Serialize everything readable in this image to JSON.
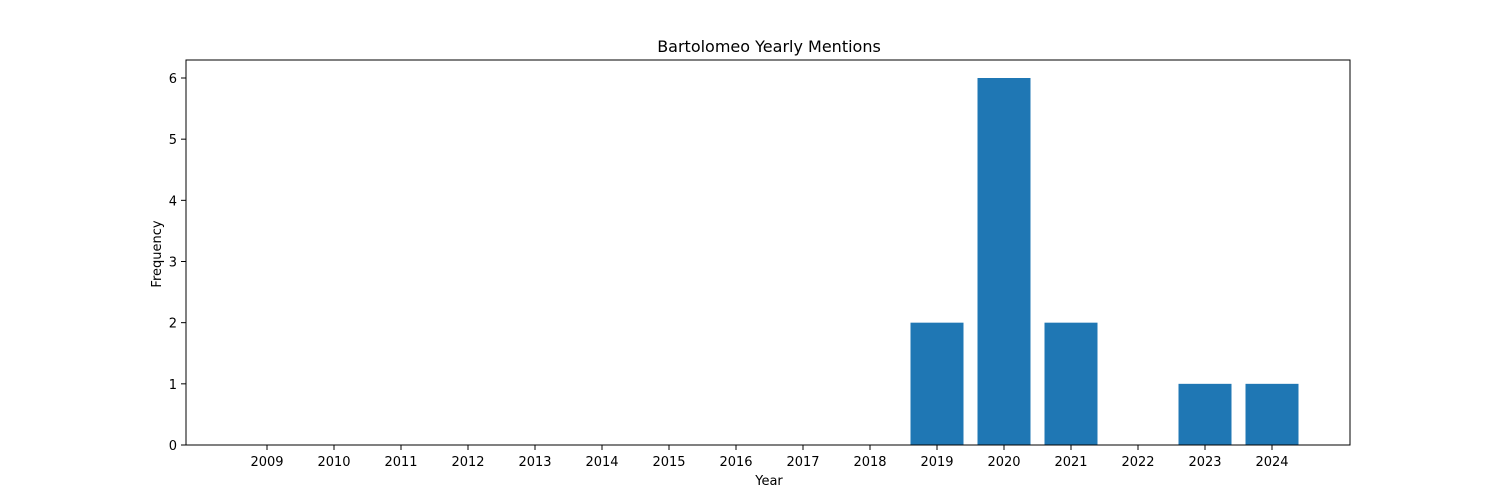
{
  "chart_data": {
    "type": "bar",
    "title": "Bartolomeo Yearly Mentions",
    "xlabel": "Year",
    "ylabel": "Frequency",
    "categories": [
      "2009",
      "2010",
      "2011",
      "2012",
      "2013",
      "2014",
      "2015",
      "2016",
      "2017",
      "2018",
      "2019",
      "2020",
      "2021",
      "2022",
      "2023",
      "2024"
    ],
    "values": [
      0,
      0,
      0,
      0,
      0,
      0,
      0,
      0,
      0,
      0,
      2,
      6,
      2,
      0,
      1,
      1
    ],
    "ylim": [
      0,
      6
    ],
    "yticks": [
      0,
      1,
      2,
      3,
      4,
      5,
      6
    ],
    "bar_color": "#1f77b4",
    "grid": false,
    "legend": "none"
  }
}
